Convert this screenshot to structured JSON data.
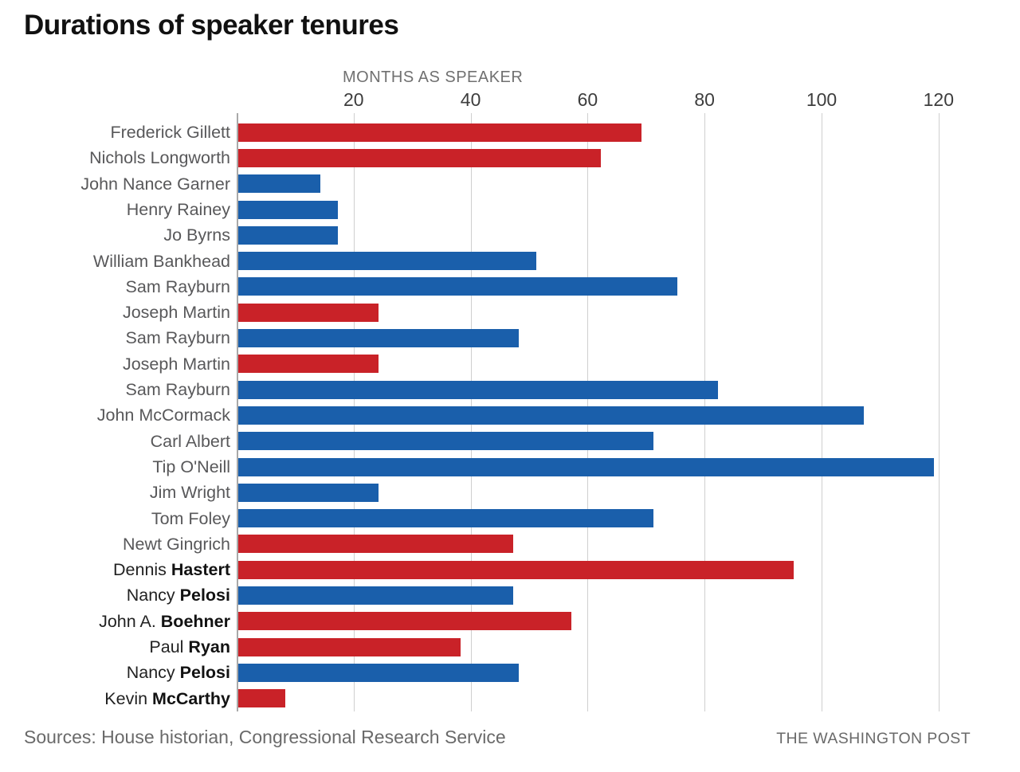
{
  "title": "Durations of speaker tenures",
  "footer": {
    "sources": "Sources: House historian, Congressional Research Service",
    "brand": "THE WASHINGTON POST"
  },
  "colors": {
    "republican": "#C92228",
    "democrat": "#1A5FAB",
    "grid": "#cfcfcf",
    "axis_line": "#a9a9a9",
    "label_gray": "#58585a",
    "label_dark": "#222222"
  },
  "chart_data": {
    "type": "bar",
    "orientation": "horizontal",
    "title": "Durations of speaker tenures",
    "xlabel": "MONTHS AS SPEAKER",
    "ylabel": "",
    "xlim": [
      0,
      122
    ],
    "ticks": [
      20,
      40,
      60,
      80,
      100,
      120
    ],
    "grid": true,
    "legend": "none",
    "party_color_key": {
      "R": "republican",
      "D": "democrat"
    },
    "rows": [
      {
        "label": "Frederick Gillett",
        "label_bold": "",
        "party": "R",
        "months": 69
      },
      {
        "label": "Nichols Longworth",
        "label_bold": "",
        "party": "R",
        "months": 62
      },
      {
        "label": "John Nance Garner",
        "label_bold": "",
        "party": "D",
        "months": 14
      },
      {
        "label": "Henry Rainey",
        "label_bold": "",
        "party": "D",
        "months": 17
      },
      {
        "label": "Jo Byrns",
        "label_bold": "",
        "party": "D",
        "months": 17
      },
      {
        "label": "William Bankhead",
        "label_bold": "",
        "party": "D",
        "months": 51
      },
      {
        "label": "Sam Rayburn",
        "label_bold": "",
        "party": "D",
        "months": 75
      },
      {
        "label": "Joseph Martin",
        "label_bold": "",
        "party": "R",
        "months": 24
      },
      {
        "label": "Sam Rayburn",
        "label_bold": "",
        "party": "D",
        "months": 48
      },
      {
        "label": "Joseph Martin",
        "label_bold": "",
        "party": "R",
        "months": 24
      },
      {
        "label": "Sam Rayburn",
        "label_bold": "",
        "party": "D",
        "months": 82
      },
      {
        "label": "John McCormack",
        "label_bold": "",
        "party": "D",
        "months": 107
      },
      {
        "label": "Carl Albert",
        "label_bold": "",
        "party": "D",
        "months": 71
      },
      {
        "label": "Tip O'Neill",
        "label_bold": "",
        "party": "D",
        "months": 119
      },
      {
        "label": "Jim Wright",
        "label_bold": "",
        "party": "D",
        "months": 24
      },
      {
        "label": "Tom Foley",
        "label_bold": "",
        "party": "D",
        "months": 71
      },
      {
        "label": "Newt Gingrich",
        "label_bold": "",
        "party": "R",
        "months": 47
      },
      {
        "label": "Dennis ",
        "label_bold": "Hastert",
        "party": "R",
        "months": 95
      },
      {
        "label": "Nancy ",
        "label_bold": "Pelosi",
        "party": "D",
        "months": 47
      },
      {
        "label": "John A. ",
        "label_bold": "Boehner",
        "party": "R",
        "months": 57
      },
      {
        "label": "Paul ",
        "label_bold": "Ryan",
        "party": "R",
        "months": 38
      },
      {
        "label": "Nancy ",
        "label_bold": "Pelosi",
        "party": "D",
        "months": 48
      },
      {
        "label": "Kevin ",
        "label_bold": "McCarthy",
        "party": "R",
        "months": 8
      }
    ]
  }
}
